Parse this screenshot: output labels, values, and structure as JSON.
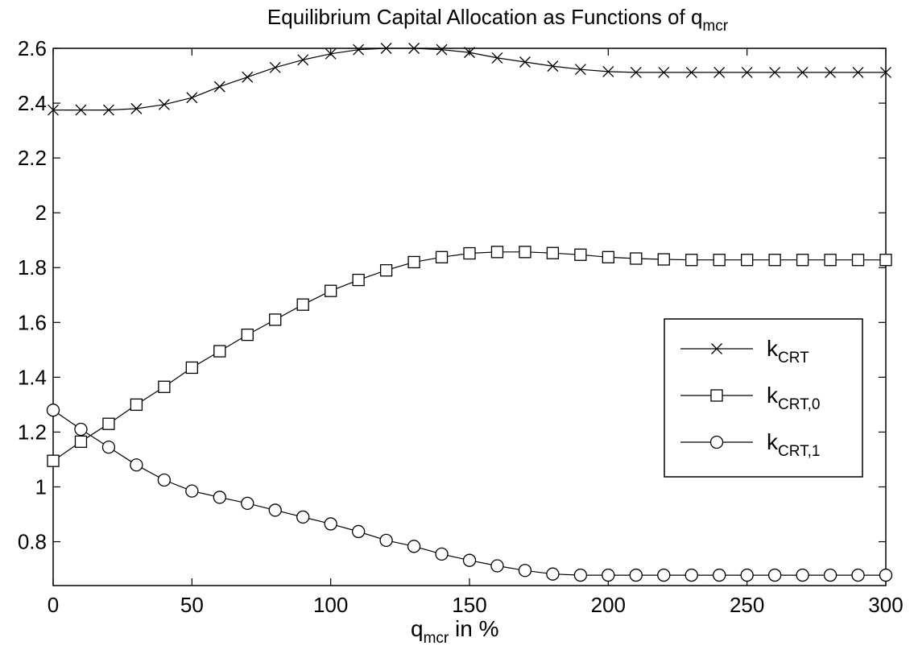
{
  "chart_data": {
    "type": "line",
    "title": {
      "main": "Equilibrium Capital Allocation as Functions of q",
      "sub": "mcr"
    },
    "xlabel": {
      "main": "q",
      "sub": "mcr",
      "tail": " in %"
    },
    "ylabel": "",
    "xlim": [
      0,
      300
    ],
    "ylim": [
      0.64,
      2.6
    ],
    "xticks": [
      0,
      50,
      100,
      150,
      200,
      250,
      300
    ],
    "xtick_labels": [
      "0",
      "50",
      "100",
      "150",
      "200",
      "250",
      "300"
    ],
    "yticks": [
      0.8,
      1,
      1.2,
      1.4,
      1.6,
      1.8,
      2,
      2.2,
      2.4,
      2.6
    ],
    "ytick_labels": [
      "0.8",
      "1",
      "1.2",
      "1.4",
      "1.6",
      "1.8",
      "2",
      "2.2",
      "2.4",
      "2.6"
    ],
    "grid": false,
    "legend_position": "right",
    "x": [
      0,
      10,
      20,
      30,
      40,
      50,
      60,
      70,
      80,
      90,
      100,
      110,
      120,
      130,
      140,
      150,
      160,
      170,
      180,
      190,
      200,
      210,
      220,
      230,
      240,
      250,
      260,
      270,
      280,
      290,
      300
    ],
    "series": [
      {
        "name": {
          "main": "k",
          "sub": "CRT"
        },
        "marker": "x",
        "values": [
          2.375,
          2.375,
          2.375,
          2.38,
          2.395,
          2.42,
          2.46,
          2.495,
          2.53,
          2.558,
          2.58,
          2.595,
          2.6,
          2.6,
          2.595,
          2.585,
          2.565,
          2.55,
          2.535,
          2.523,
          2.515,
          2.512,
          2.512,
          2.512,
          2.512,
          2.512,
          2.512,
          2.512,
          2.512,
          2.512,
          2.512
        ]
      },
      {
        "name": {
          "main": "k",
          "sub": "CRT,0"
        },
        "marker": "square",
        "values": [
          1.095,
          1.165,
          1.23,
          1.3,
          1.365,
          1.435,
          1.495,
          1.555,
          1.61,
          1.665,
          1.715,
          1.755,
          1.79,
          1.82,
          1.838,
          1.852,
          1.857,
          1.857,
          1.853,
          1.847,
          1.838,
          1.833,
          1.83,
          1.828,
          1.828,
          1.828,
          1.828,
          1.828,
          1.828,
          1.828,
          1.828
        ]
      },
      {
        "name": {
          "main": "k",
          "sub": "CRT,1"
        },
        "marker": "circle",
        "values": [
          1.28,
          1.21,
          1.145,
          1.08,
          1.025,
          0.985,
          0.962,
          0.94,
          0.915,
          0.89,
          0.865,
          0.837,
          0.805,
          0.783,
          0.755,
          0.732,
          0.712,
          0.695,
          0.682,
          0.678,
          0.678,
          0.678,
          0.678,
          0.678,
          0.678,
          0.678,
          0.678,
          0.678,
          0.678,
          0.678,
          0.678
        ]
      }
    ]
  }
}
